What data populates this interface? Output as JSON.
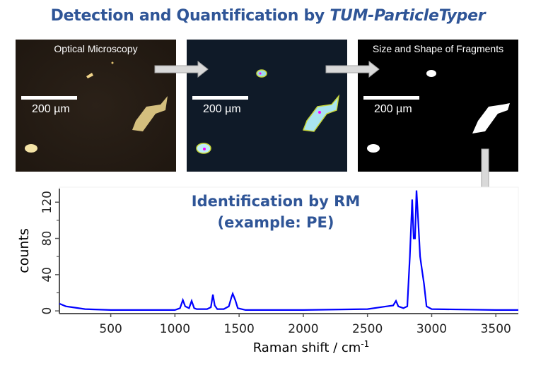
{
  "title": {
    "prefix": "Detection and Quantification by ",
    "italic": "TUM-ParticleTyper"
  },
  "panels": [
    {
      "label": "Optical Microscopy",
      "scale": "200 µm"
    },
    {
      "label": "",
      "scale": "200 µm"
    },
    {
      "label": "Size and Shape of Fragments",
      "scale": "200 µm"
    }
  ],
  "plot_title": {
    "line1": "Identification by RM",
    "line2": "(example: PE)"
  },
  "chart_data": {
    "type": "line",
    "xlabel": "Raman shift / cm",
    "xlabel_sup": "-1",
    "ylabel": "counts",
    "xlim": [
      100,
      3675
    ],
    "ylim": [
      -3,
      135
    ],
    "xticks": [
      500,
      1000,
      1500,
      2000,
      2500,
      3000,
      3500
    ],
    "yticks": [
      0,
      40,
      80,
      120
    ],
    "yminor": [
      20,
      60,
      100
    ],
    "color": "#0000ff",
    "series": [
      {
        "name": "PE",
        "x": [
          100,
          150,
          200,
          300,
          500,
          800,
          1000,
          1040,
          1062,
          1080,
          1110,
          1130,
          1150,
          1170,
          1250,
          1280,
          1296,
          1310,
          1330,
          1380,
          1420,
          1440,
          1450,
          1470,
          1490,
          1550,
          2000,
          2500,
          2650,
          2700,
          2722,
          2740,
          2780,
          2810,
          2830,
          2848,
          2860,
          2870,
          2882,
          2895,
          2910,
          2925,
          2940,
          2960,
          3000,
          3500,
          3675
        ],
        "y": [
          8,
          5,
          4,
          2,
          1,
          1,
          1,
          3,
          12,
          5,
          3,
          11,
          3,
          2,
          2,
          4,
          18,
          6,
          2,
          2,
          5,
          15,
          19,
          12,
          3,
          1,
          1,
          2,
          5,
          6,
          11,
          5,
          3,
          5,
          60,
          123,
          80,
          80,
          133,
          100,
          60,
          45,
          30,
          5,
          2,
          1,
          1
        ]
      }
    ]
  }
}
